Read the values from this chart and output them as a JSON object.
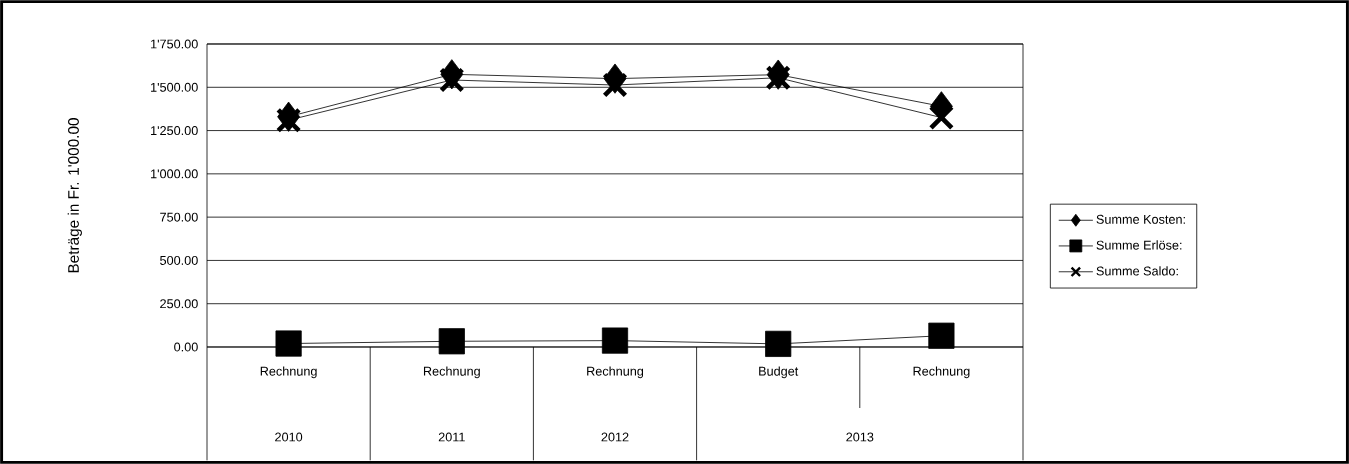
{
  "chart_data": {
    "type": "line",
    "ylabel": "Beträge in Fr. 1'000.00",
    "categories": [
      "Rechnung",
      "Rechnung",
      "Rechnung",
      "Budget",
      "Rechnung"
    ],
    "annotations": [
      "2010",
      "2011",
      "2012",
      "2013"
    ],
    "series": [
      {
        "name": "Summe Kosten:",
        "color": "#000000",
        "marker": "diamond",
        "values": [
          1330,
          1575,
          1550,
          1573,
          1390
        ]
      },
      {
        "name": "Summe Erlöse:",
        "color": "#000000",
        "marker": "square",
        "values": [
          20,
          33,
          37,
          18,
          65
        ]
      },
      {
        "name": "Summe Saldo:",
        "color": "#000000",
        "marker": "cross",
        "values": [
          1310,
          1542,
          1513,
          1555,
          1325
        ]
      }
    ],
    "ylim": [
      0,
      1750
    ],
    "yticks": [
      {
        "value": 0,
        "label": "0.00"
      },
      {
        "value": 250,
        "label": "250.00"
      },
      {
        "value": 500,
        "label": "500.00"
      },
      {
        "value": 750,
        "label": "750.00"
      },
      {
        "value": 1000,
        "label": "1'000.00"
      },
      {
        "value": 1250,
        "label": "1'250.00"
      },
      {
        "value": 1500,
        "label": "1'500.00"
      },
      {
        "value": 1750,
        "label": "1'750.00"
      }
    ],
    "grid": "y",
    "legend": "right",
    "line_style": "solid"
  }
}
